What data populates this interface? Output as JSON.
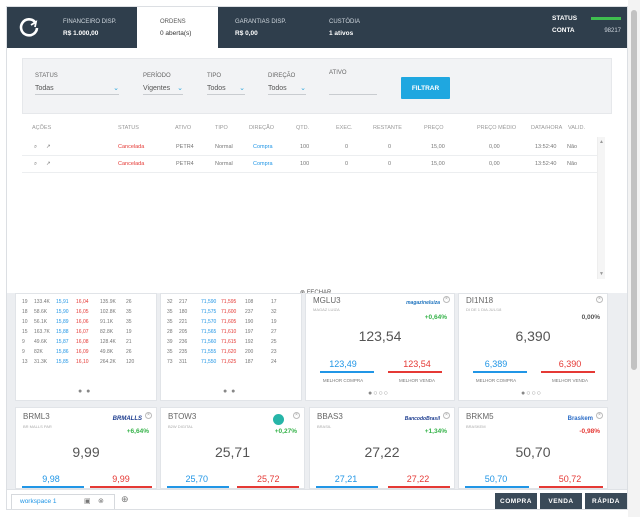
{
  "topbar": {
    "financeiro": {
      "label": "FINANCEIRO DISP.",
      "value": "R$ 1.000,00"
    },
    "ordens": {
      "label": "ORDENS",
      "value": "0 aberta(s)"
    },
    "garantias": {
      "label": "GARANTIAS DISP.",
      "value": "R$ 0,00"
    },
    "custodia": {
      "label": "CUSTÓDIA",
      "value": "1 ativos"
    },
    "status_label": "STATUS",
    "conta_label": "CONTA",
    "conta_value": "98217"
  },
  "filters": {
    "status": {
      "label": "STATUS",
      "value": "Todas"
    },
    "periodo": {
      "label": "PERÍODO",
      "value": "Vigentes"
    },
    "tipo": {
      "label": "TIPO",
      "value": "Todos"
    },
    "direcao": {
      "label": "DIREÇÃO",
      "value": "Todos"
    },
    "ativo": {
      "label": "ATIVO",
      "value": ""
    },
    "filtrar_label": "FILTRAR"
  },
  "orders": {
    "headers": [
      "AÇÕES",
      "STATUS",
      "ATIVO",
      "TIPO",
      "DIREÇÃO",
      "QTD.",
      "EXEC.",
      "RESTANTE",
      "PREÇO",
      "PREÇO MÉDIO",
      "DATA/HORA",
      "VALID."
    ],
    "rows": [
      {
        "status": "Cancelada",
        "ativo": "PETR4",
        "tipo": "Normal",
        "direcao": "Compra",
        "qtd": "100",
        "exec": "0",
        "restante": "0",
        "preco": "15,00",
        "preco_medio": "0,00",
        "hora": "13:52:40",
        "valid": "Não"
      },
      {
        "status": "Cancelada",
        "ativo": "PETR4",
        "tipo": "Normal",
        "direcao": "Compra",
        "qtd": "100",
        "exec": "0",
        "restante": "0",
        "preco": "15,00",
        "preco_medio": "0,00",
        "hora": "13:52:40",
        "valid": "Não"
      }
    ]
  },
  "fechar_label": "FECHAR",
  "book1": [
    [
      "19",
      "133.4K",
      "15,91",
      "16,04",
      "135.9K",
      "26"
    ],
    [
      "18",
      "58.6K",
      "15,90",
      "16,05",
      "102.8K",
      "35"
    ],
    [
      "10",
      "56.1K",
      "15,89",
      "16,06",
      "91.1K",
      "35"
    ],
    [
      "15",
      "163.7K",
      "15,88",
      "16,07",
      "82.8K",
      "19"
    ],
    [
      "9",
      "49.6K",
      "15,87",
      "16,08",
      "128.4K",
      "21"
    ],
    [
      "9",
      "82K",
      "15,86",
      "16,09",
      "49.8K",
      "26"
    ],
    [
      "13",
      "31.3K",
      "15,85",
      "16,10",
      "264.2K",
      "120"
    ]
  ],
  "book2": [
    [
      "32",
      "217",
      "71,590",
      "71,595",
      "108",
      "17"
    ],
    [
      "35",
      "180",
      "71,575",
      "71,600",
      "237",
      "32"
    ],
    [
      "35",
      "221",
      "71,570",
      "71,605",
      "190",
      "19"
    ],
    [
      "28",
      "205",
      "71,565",
      "71,610",
      "197",
      "27"
    ],
    [
      "39",
      "236",
      "71,560",
      "71,615",
      "192",
      "25"
    ],
    [
      "35",
      "235",
      "71,555",
      "71,620",
      "200",
      "23"
    ],
    [
      "73",
      "311",
      "71,550",
      "71,625",
      "187",
      "24"
    ]
  ],
  "cards": [
    {
      "ticker": "MGLU3",
      "sub": "MAGAZ LUIZA",
      "brand": "magazineluiza",
      "pct": "+0,64%",
      "price": "123,54",
      "bid": "123,49",
      "ask": "123,54",
      "compra_label": "MELHOR COMPRA",
      "venda_label": "MELHOR VENDA"
    },
    {
      "ticker": "DI1N18",
      "sub": "DI DE 1 DIA JUL/18",
      "brand": "",
      "pct": "0,00%",
      "price": "6,390",
      "bid": "6,389",
      "ask": "6,390",
      "compra_label": "MELHOR COMPRA",
      "venda_label": "MELHOR VENDA"
    },
    {
      "ticker": "BRML3",
      "sub": "BR MALLS PAR",
      "brand": "BRMALLS",
      "pct": "+6,64%",
      "price": "9,99",
      "bid": "9,98",
      "ask": "9,99"
    },
    {
      "ticker": "BTOW3",
      "sub": "B2W DIGITAL",
      "brand": "",
      "pct": "+0,27%",
      "price": "25,71",
      "bid": "25,70",
      "ask": "25,72"
    },
    {
      "ticker": "BBAS3",
      "sub": "BRASIL",
      "brand": "BancodoBrasil",
      "pct": "+1,34%",
      "price": "27,22",
      "bid": "27,21",
      "ask": "27,22"
    },
    {
      "ticker": "BRKM5",
      "sub": "BRASKEM",
      "brand": "Braskem",
      "pct": "-0,98%",
      "price": "50,70",
      "bid": "50,70",
      "ask": "50,72"
    }
  ],
  "footer": {
    "workspace": "workspace 1",
    "compra": "COMPRA",
    "venda": "VENDA",
    "rapida": "RÁPIDA"
  },
  "colors": {
    "topbar": "#2f3e4c",
    "accent": "#1fa7e0",
    "buy": "#2196e6",
    "sell": "#e53935",
    "up": "#36b34a"
  }
}
